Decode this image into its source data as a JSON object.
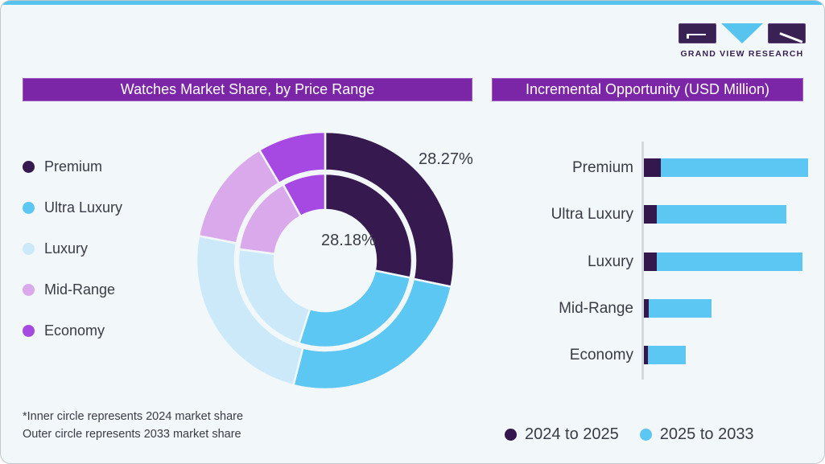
{
  "logo": {
    "wordmark": "GRAND VIEW RESEARCH"
  },
  "colors": {
    "card_background": "#F2F7FA",
    "top_accent": "#57C4EF",
    "header_bar": "#7B26A7",
    "text": "#3B3B46",
    "axis_line": "#D4D9DD",
    "logo_purple": "#3A2153",
    "logo_blue": "#57C4EF"
  },
  "left_panel": {
    "title": "Watches Market Share, by Price Range",
    "footnote_line1": "*Inner circle represents 2024 market share",
    "footnote_line2": "Outer circle represents 2033 market share"
  },
  "right_panel": {
    "title": "Incremental Opportunity (USD Million)"
  },
  "chart_data": [
    {
      "type": "pie",
      "subtype": "double-ring donut",
      "title": "Watches Market Share, by Price Range",
      "categories": [
        "Premium",
        "Ultra Luxury",
        "Luxury",
        "Mid-Range",
        "Economy"
      ],
      "segment_colors": [
        "#36194F",
        "#5BC7F2",
        "#CBE9F8",
        "#D9A9EC",
        "#A648E2"
      ],
      "rings": [
        {
          "name": "outer",
          "represents": "2033 market share",
          "values": [
            28.27,
            25.7,
            24.1,
            13.4,
            8.53
          ],
          "labeled_category": "Premium",
          "labeled_value": "28.27%"
        },
        {
          "name": "inner",
          "represents": "2024 market share",
          "values": [
            28.18,
            26.7,
            22.2,
            14.9,
            8.02
          ],
          "labeled_category": "Premium",
          "labeled_value": "28.18%"
        }
      ],
      "start_angle_deg": 0,
      "direction": "clockwise",
      "legend_position": "left"
    },
    {
      "type": "bar",
      "orientation": "horizontal",
      "stacked": true,
      "title": "Incremental Opportunity (USD Million)",
      "categories": [
        "Premium",
        "Ultra Luxury",
        "Luxury",
        "Mid-Range",
        "Economy"
      ],
      "series": [
        {
          "name": "2024 to 2025",
          "color": "#33174D",
          "values": [
            10.2,
            7.8,
            7.8,
            2.9,
            2.4
          ]
        },
        {
          "name": "2025 to 2033",
          "color": "#5BC7F2",
          "values": [
            89.8,
            78.8,
            89.0,
            38.5,
            22.9
          ]
        }
      ],
      "axis_range": [
        0,
        100
      ],
      "gridlines": false,
      "legend_position": "bottom"
    }
  ]
}
